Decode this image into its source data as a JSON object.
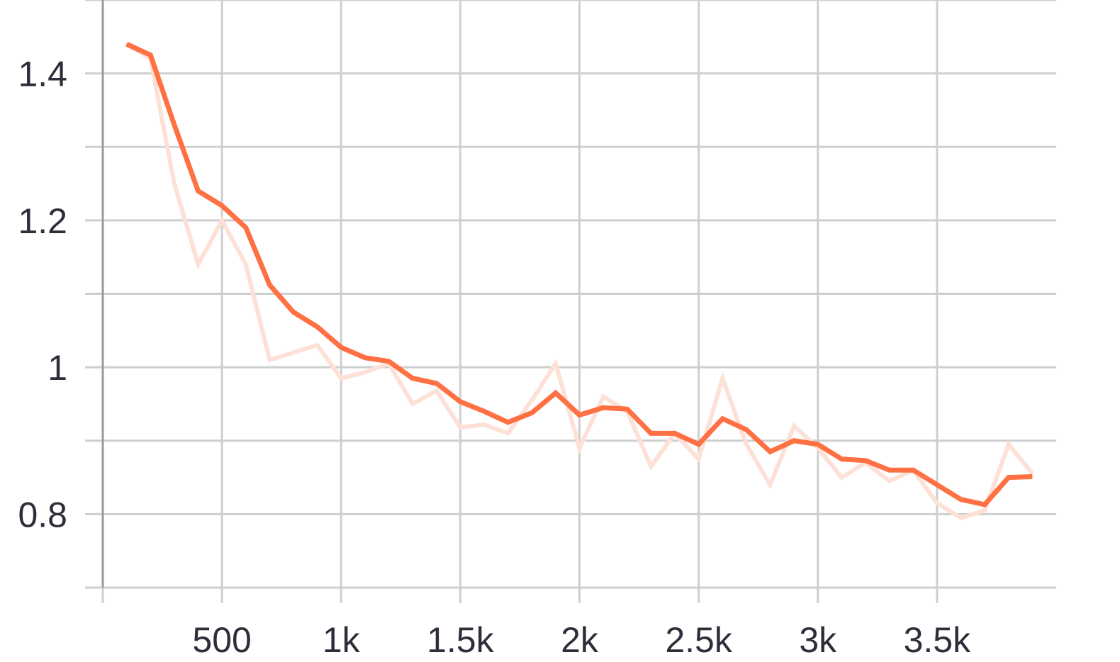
{
  "chart_data": {
    "type": "line",
    "x_ticks": [
      {
        "value": 500,
        "label": "500"
      },
      {
        "value": 1000,
        "label": "1k"
      },
      {
        "value": 1500,
        "label": "1.5k"
      },
      {
        "value": 2000,
        "label": "2k"
      },
      {
        "value": 2500,
        "label": "2.5k"
      },
      {
        "value": 3000,
        "label": "3k"
      },
      {
        "value": 3500,
        "label": "3.5k"
      }
    ],
    "y_ticks": [
      {
        "value": 0.8,
        "label": "0.8"
      },
      {
        "value": 1.0,
        "label": "1"
      },
      {
        "value": 1.2,
        "label": "1.2"
      },
      {
        "value": 1.4,
        "label": "1.4"
      }
    ],
    "xlim": [
      0,
      4000
    ],
    "ylim": [
      0.7,
      1.5
    ],
    "grid": true,
    "x": [
      100,
      200,
      300,
      400,
      500,
      600,
      700,
      800,
      900,
      1000,
      1100,
      1200,
      1300,
      1400,
      1500,
      1600,
      1700,
      1800,
      1900,
      2000,
      2100,
      2200,
      2300,
      2400,
      2500,
      2600,
      2700,
      2800,
      2900,
      3000,
      3100,
      3200,
      3300,
      3400,
      3500,
      3600,
      3700,
      3800,
      3900
    ],
    "series": [
      {
        "role": "raw",
        "color": "#fde0d6",
        "values": [
          1.44,
          1.42,
          1.25,
          1.14,
          1.2,
          1.14,
          1.01,
          1.02,
          1.03,
          0.985,
          0.993,
          1.005,
          0.95,
          0.968,
          0.918,
          0.922,
          0.91,
          0.955,
          1.005,
          0.89,
          0.96,
          0.94,
          0.865,
          0.91,
          0.875,
          0.985,
          0.895,
          0.84,
          0.92,
          0.89,
          0.85,
          0.87,
          0.845,
          0.86,
          0.815,
          0.795,
          0.805,
          0.895,
          0.855
        ]
      },
      {
        "role": "smoothed",
        "color": "#ff7043",
        "values": [
          1.44,
          1.425,
          1.33,
          1.24,
          1.22,
          1.19,
          1.112,
          1.075,
          1.055,
          1.027,
          1.013,
          1.008,
          0.985,
          0.978,
          0.953,
          0.94,
          0.925,
          0.938,
          0.965,
          0.935,
          0.945,
          0.943,
          0.91,
          0.91,
          0.895,
          0.93,
          0.915,
          0.885,
          0.9,
          0.895,
          0.875,
          0.873,
          0.86,
          0.86,
          0.84,
          0.82,
          0.813,
          0.85,
          0.851
        ]
      }
    ]
  }
}
